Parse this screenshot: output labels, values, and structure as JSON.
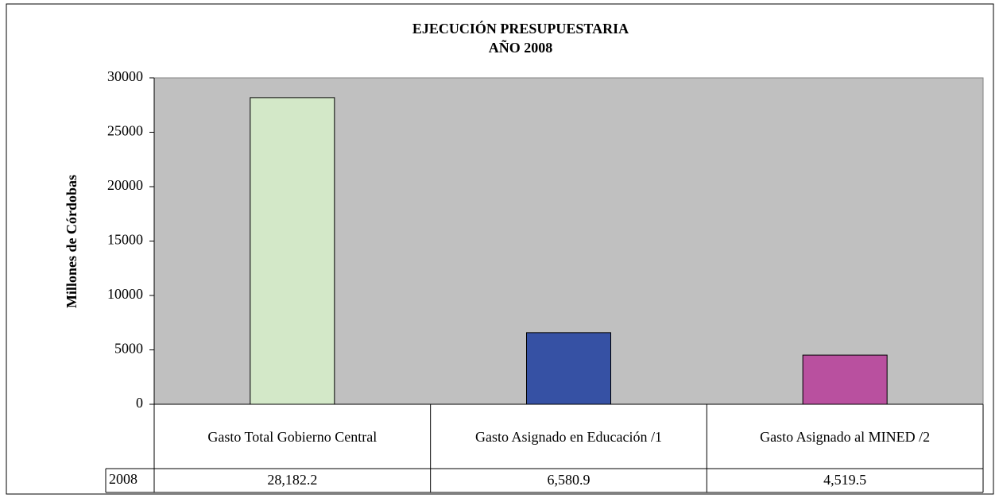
{
  "chart_data": {
    "type": "bar",
    "title": "EJECUCIÓN PRESUPUESTARIA",
    "subtitle": "AÑO 2008",
    "y_label": "Millones de Córdobas",
    "categories": [
      "Gasto Total Gobierno Central",
      "Gasto Asignado en Educación /1",
      "Gasto Asignado al MINED /2"
    ],
    "series": [
      {
        "name": "2008",
        "colors": [
          "#d3e8c8",
          "#3651a4",
          "#b9509f"
        ],
        "values": [
          28182.2,
          6580.9,
          4519.5
        ],
        "value_labels": [
          "28,182.2",
          "6,580.9",
          "4,519.5"
        ]
      }
    ],
    "ylim": [
      0,
      30000
    ],
    "yticks": [
      0,
      5000,
      10000,
      15000,
      20000,
      25000,
      30000
    ],
    "plot_background": "#c0c0c0"
  }
}
